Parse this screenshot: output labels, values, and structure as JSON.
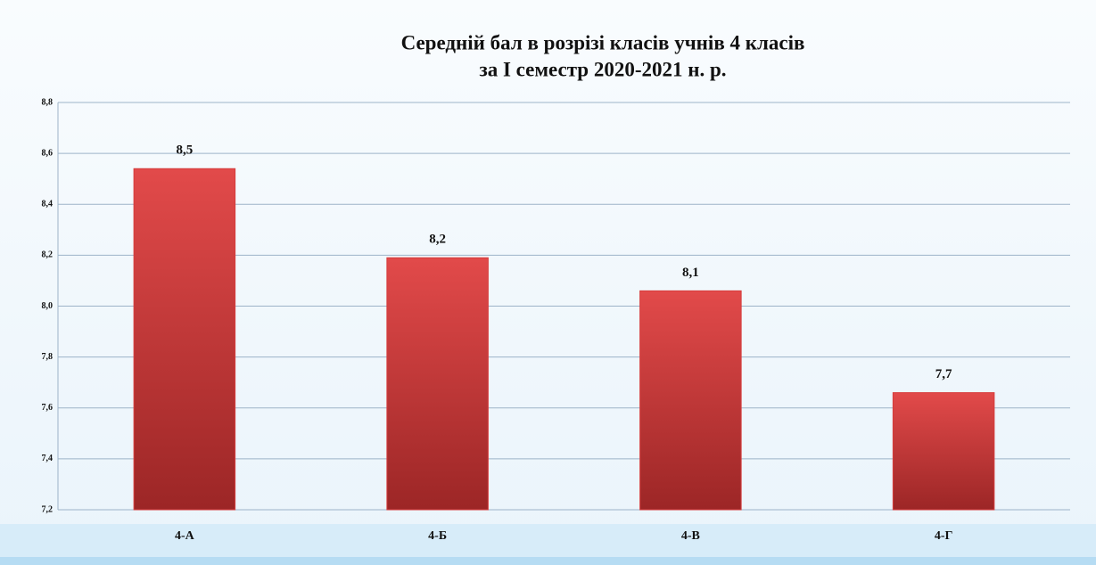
{
  "chart_data": {
    "type": "bar",
    "title": [
      "Середній бал в розрізі класів учнів 4 класів",
      "за І семестр 2020-2021 н. р."
    ],
    "categories": [
      "4-А",
      "4-Б",
      "4-В",
      "4-Г"
    ],
    "values": [
      8.54,
      8.19,
      8.06,
      7.66
    ],
    "value_labels": [
      "8,5",
      "8,2",
      "8,1",
      "7,7"
    ],
    "color": "#d63c3c",
    "ylim": [
      7.2,
      8.8
    ],
    "yticks": [
      {
        "value": 7.2,
        "label": "7,2"
      },
      {
        "value": 7.4,
        "label": "7,4"
      },
      {
        "value": 7.6,
        "label": "7,6"
      },
      {
        "value": 7.8,
        "label": "7,8"
      },
      {
        "value": 8.0,
        "label": "8,0"
      },
      {
        "value": 8.2,
        "label": "8,2"
      },
      {
        "value": 8.4,
        "label": "8,4"
      },
      {
        "value": 8.6,
        "label": "8,6"
      },
      {
        "value": 8.8,
        "label": "8,8"
      }
    ],
    "grid": true
  }
}
